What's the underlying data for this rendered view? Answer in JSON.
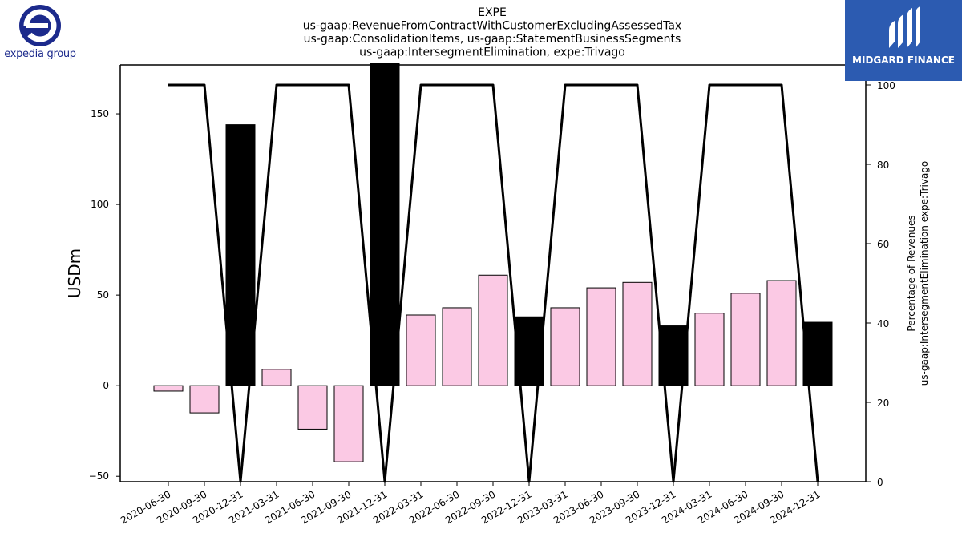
{
  "chart_data": {
    "type": "bar",
    "title_lines": [
      "EXPE",
      "us-gaap:RevenueFromContractWithCustomerExcludingAssessedTax",
      "us-gaap:ConsolidationItems, us-gaap:StatementBusinessSegments",
      "us-gaap:IntersegmentElimination, expe:Trivago"
    ],
    "ylabel": "USDm",
    "y2label_lines": [
      "Percentage of Revenues",
      "us-gaap:IntersegmentElimination expe:Trivago"
    ],
    "categories": [
      "2020-06-30",
      "2020-09-30",
      "2020-12-31",
      "2021-03-31",
      "2021-06-30",
      "2021-09-30",
      "2021-12-31",
      "2022-03-31",
      "2022-06-30",
      "2022-09-30",
      "2022-12-31",
      "2023-03-31",
      "2023-06-30",
      "2023-09-30",
      "2023-12-31",
      "2024-03-31",
      "2024-06-30",
      "2024-09-30",
      "2024-12-31"
    ],
    "series": [
      {
        "values": [
          -3,
          -15,
          144,
          9,
          -24,
          -42,
          178,
          39,
          43,
          61,
          38,
          43,
          54,
          57,
          33,
          40,
          51,
          58,
          35
        ],
        "highlight": [
          false,
          false,
          true,
          false,
          false,
          false,
          true,
          false,
          false,
          false,
          true,
          false,
          false,
          false,
          true,
          false,
          false,
          false,
          true
        ]
      },
      {
        "axis": "right",
        "values": [
          100,
          100,
          0,
          100,
          100,
          100,
          0,
          100,
          100,
          100,
          0,
          100,
          100,
          100,
          0,
          100,
          100,
          100,
          0
        ]
      }
    ],
    "ylim": [
      -53,
      177
    ],
    "yticks": [
      -50,
      0,
      50,
      100,
      150
    ],
    "y2lim": [
      0,
      100
    ],
    "y2ticks": [
      0,
      20,
      40,
      60,
      80,
      100
    ],
    "colors": {
      "bar": "#fbc9e4",
      "bar_highlight": "#000000",
      "line": "#000000"
    },
    "grid": false
  },
  "logos": {
    "left": "expedia group",
    "right": "MIDGARD FINANCE"
  }
}
